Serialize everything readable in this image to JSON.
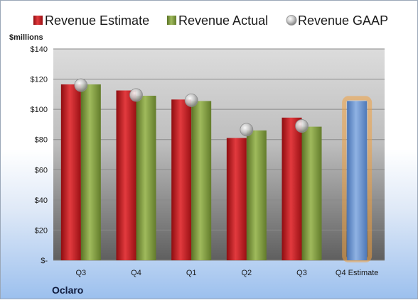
{
  "chart_data": {
    "type": "bar",
    "company": "Oclaro",
    "ylabel": "$millions",
    "categories": [
      "Q3",
      "Q4",
      "Q1",
      "Q2",
      "Q3",
      "Q4 Estimate"
    ],
    "ylim": [
      0,
      140
    ],
    "yticks": [
      0,
      20,
      40,
      60,
      80,
      100,
      120,
      140
    ],
    "ytick_labels": [
      "$-",
      "$20",
      "$40",
      "$60",
      "$80",
      "$100",
      "$120",
      "$140"
    ],
    "grid": true,
    "legend_position": "top",
    "series": [
      {
        "name": "Revenue Estimate",
        "kind": "bar",
        "color": "#c0171c",
        "values": [
          116.5,
          112.5,
          106.5,
          81,
          94.5,
          null
        ]
      },
      {
        "name": "Revenue Actual",
        "kind": "bar",
        "color": "#7f9a3c",
        "values": [
          116.5,
          109,
          105.5,
          86,
          88.5,
          null
        ]
      },
      {
        "name": "Revenue GAAP",
        "kind": "marker",
        "color": "#b8b8b8",
        "values": [
          116,
          109.5,
          106,
          86.5,
          89,
          null
        ]
      },
      {
        "name": "Q4 Estimate",
        "kind": "bar",
        "color": "#6b96d0",
        "highlight": "#f0a040",
        "values": [
          null,
          null,
          null,
          null,
          null,
          105.5
        ]
      }
    ]
  }
}
